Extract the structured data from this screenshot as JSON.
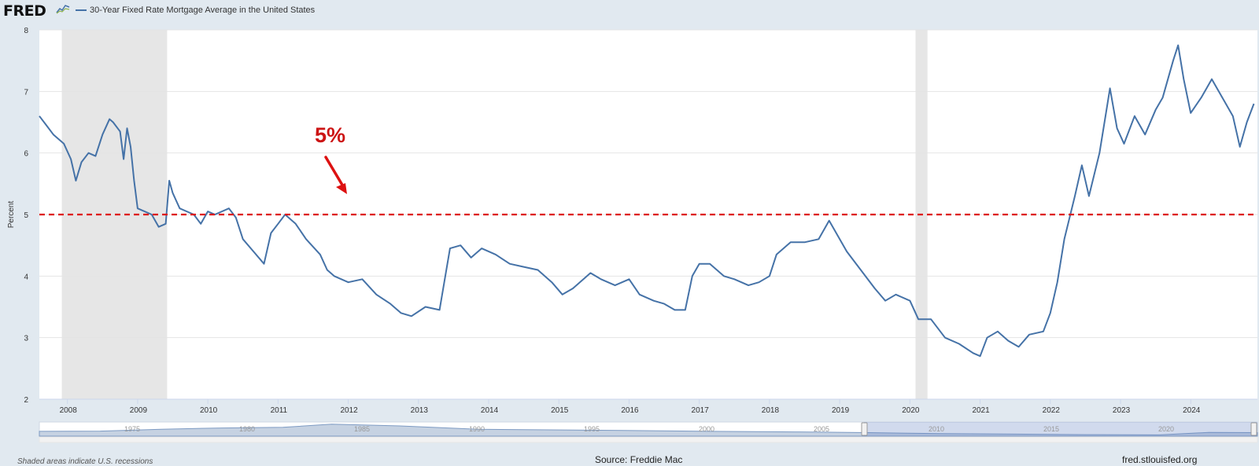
{
  "header": {
    "logo": "FRED",
    "legend_label": "30-Year Fixed Rate Mortgage Average in the United States"
  },
  "annotation": {
    "label": "5%",
    "value": 5
  },
  "footer": {
    "note": "Shaded areas indicate U.S. recessions",
    "source": "Source: Freddie Mac",
    "url": "fred.stlouisfed.org"
  },
  "navigator": {
    "year_labels": [
      "1975",
      "1980",
      "1985",
      "1990",
      "1995",
      "2000",
      "2005",
      "2010",
      "2015",
      "2020"
    ]
  },
  "colors": {
    "series": "#4572a7",
    "recession": "#e6e6e6",
    "reference_line": "#dd1111",
    "background": "#e1e9f0",
    "plot": "#ffffff"
  },
  "chart_data": {
    "type": "line",
    "ylabel": "Percent",
    "ylim": [
      2,
      8
    ],
    "yticks": [
      2,
      3,
      4,
      5,
      6,
      7,
      8
    ],
    "xlim": [
      2007.6,
      2024.95
    ],
    "xticks": [
      2008,
      2009,
      2010,
      2011,
      2012,
      2013,
      2014,
      2015,
      2016,
      2017,
      2018,
      2019,
      2020,
      2021,
      2022,
      2023,
      2024
    ],
    "grid": true,
    "recessions": [
      [
        2007.92,
        2009.42
      ],
      [
        2020.08,
        2020.25
      ]
    ],
    "reference_line": 5,
    "series": [
      {
        "name": "30-Year Fixed Rate Mortgage Average in the United States",
        "points": [
          [
            2007.6,
            6.6
          ],
          [
            2007.7,
            6.45
          ],
          [
            2007.8,
            6.3
          ],
          [
            2007.95,
            6.15
          ],
          [
            2008.05,
            5.9
          ],
          [
            2008.12,
            5.55
          ],
          [
            2008.2,
            5.85
          ],
          [
            2008.3,
            6.0
          ],
          [
            2008.4,
            5.95
          ],
          [
            2008.5,
            6.3
          ],
          [
            2008.6,
            6.55
          ],
          [
            2008.65,
            6.5
          ],
          [
            2008.75,
            6.35
          ],
          [
            2008.8,
            5.9
          ],
          [
            2008.85,
            6.4
          ],
          [
            2008.9,
            6.1
          ],
          [
            2008.95,
            5.55
          ],
          [
            2009.0,
            5.1
          ],
          [
            2009.1,
            5.05
          ],
          [
            2009.2,
            5.0
          ],
          [
            2009.3,
            4.8
          ],
          [
            2009.4,
            4.85
          ],
          [
            2009.45,
            5.55
          ],
          [
            2009.5,
            5.35
          ],
          [
            2009.6,
            5.1
          ],
          [
            2009.8,
            5.0
          ],
          [
            2009.9,
            4.85
          ],
          [
            2010.0,
            5.05
          ],
          [
            2010.1,
            5.0
          ],
          [
            2010.3,
            5.1
          ],
          [
            2010.4,
            4.95
          ],
          [
            2010.5,
            4.6
          ],
          [
            2010.65,
            4.4
          ],
          [
            2010.8,
            4.2
          ],
          [
            2010.9,
            4.7
          ],
          [
            2011.0,
            4.85
          ],
          [
            2011.1,
            5.0
          ],
          [
            2011.25,
            4.85
          ],
          [
            2011.4,
            4.6
          ],
          [
            2011.6,
            4.35
          ],
          [
            2011.7,
            4.1
          ],
          [
            2011.8,
            4.0
          ],
          [
            2012.0,
            3.9
          ],
          [
            2012.2,
            3.95
          ],
          [
            2012.4,
            3.7
          ],
          [
            2012.6,
            3.55
          ],
          [
            2012.75,
            3.4
          ],
          [
            2012.9,
            3.35
          ],
          [
            2013.1,
            3.5
          ],
          [
            2013.3,
            3.45
          ],
          [
            2013.45,
            4.45
          ],
          [
            2013.6,
            4.5
          ],
          [
            2013.75,
            4.3
          ],
          [
            2013.9,
            4.45
          ],
          [
            2014.1,
            4.35
          ],
          [
            2014.3,
            4.2
          ],
          [
            2014.5,
            4.15
          ],
          [
            2014.7,
            4.1
          ],
          [
            2014.9,
            3.9
          ],
          [
            2015.05,
            3.7
          ],
          [
            2015.2,
            3.8
          ],
          [
            2015.45,
            4.05
          ],
          [
            2015.6,
            3.95
          ],
          [
            2015.8,
            3.85
          ],
          [
            2016.0,
            3.95
          ],
          [
            2016.15,
            3.7
          ],
          [
            2016.35,
            3.6
          ],
          [
            2016.5,
            3.55
          ],
          [
            2016.65,
            3.45
          ],
          [
            2016.8,
            3.45
          ],
          [
            2016.9,
            4.0
          ],
          [
            2017.0,
            4.2
          ],
          [
            2017.15,
            4.2
          ],
          [
            2017.35,
            4.0
          ],
          [
            2017.5,
            3.95
          ],
          [
            2017.7,
            3.85
          ],
          [
            2017.85,
            3.9
          ],
          [
            2018.0,
            4.0
          ],
          [
            2018.1,
            4.35
          ],
          [
            2018.3,
            4.55
          ],
          [
            2018.5,
            4.55
          ],
          [
            2018.7,
            4.6
          ],
          [
            2018.85,
            4.9
          ],
          [
            2018.95,
            4.7
          ],
          [
            2019.1,
            4.4
          ],
          [
            2019.3,
            4.1
          ],
          [
            2019.5,
            3.8
          ],
          [
            2019.65,
            3.6
          ],
          [
            2019.8,
            3.7
          ],
          [
            2020.0,
            3.6
          ],
          [
            2020.12,
            3.3
          ],
          [
            2020.3,
            3.3
          ],
          [
            2020.5,
            3.0
          ],
          [
            2020.7,
            2.9
          ],
          [
            2020.9,
            2.75
          ],
          [
            2021.0,
            2.7
          ],
          [
            2021.1,
            3.0
          ],
          [
            2021.25,
            3.1
          ],
          [
            2021.4,
            2.95
          ],
          [
            2021.55,
            2.85
          ],
          [
            2021.7,
            3.05
          ],
          [
            2021.9,
            3.1
          ],
          [
            2022.0,
            3.4
          ],
          [
            2022.1,
            3.9
          ],
          [
            2022.2,
            4.6
          ],
          [
            2022.35,
            5.3
          ],
          [
            2022.45,
            5.8
          ],
          [
            2022.55,
            5.3
          ],
          [
            2022.7,
            6.0
          ],
          [
            2022.8,
            6.7
          ],
          [
            2022.85,
            7.05
          ],
          [
            2022.95,
            6.4
          ],
          [
            2023.05,
            6.15
          ],
          [
            2023.2,
            6.6
          ],
          [
            2023.35,
            6.3
          ],
          [
            2023.5,
            6.7
          ],
          [
            2023.6,
            6.9
          ],
          [
            2023.75,
            7.5
          ],
          [
            2023.82,
            7.75
          ],
          [
            2023.9,
            7.2
          ],
          [
            2024.0,
            6.65
          ],
          [
            2024.15,
            6.9
          ],
          [
            2024.3,
            7.2
          ],
          [
            2024.45,
            6.9
          ],
          [
            2024.6,
            6.6
          ],
          [
            2024.7,
            6.1
          ],
          [
            2024.8,
            6.5
          ],
          [
            2024.9,
            6.8
          ]
        ]
      }
    ]
  }
}
